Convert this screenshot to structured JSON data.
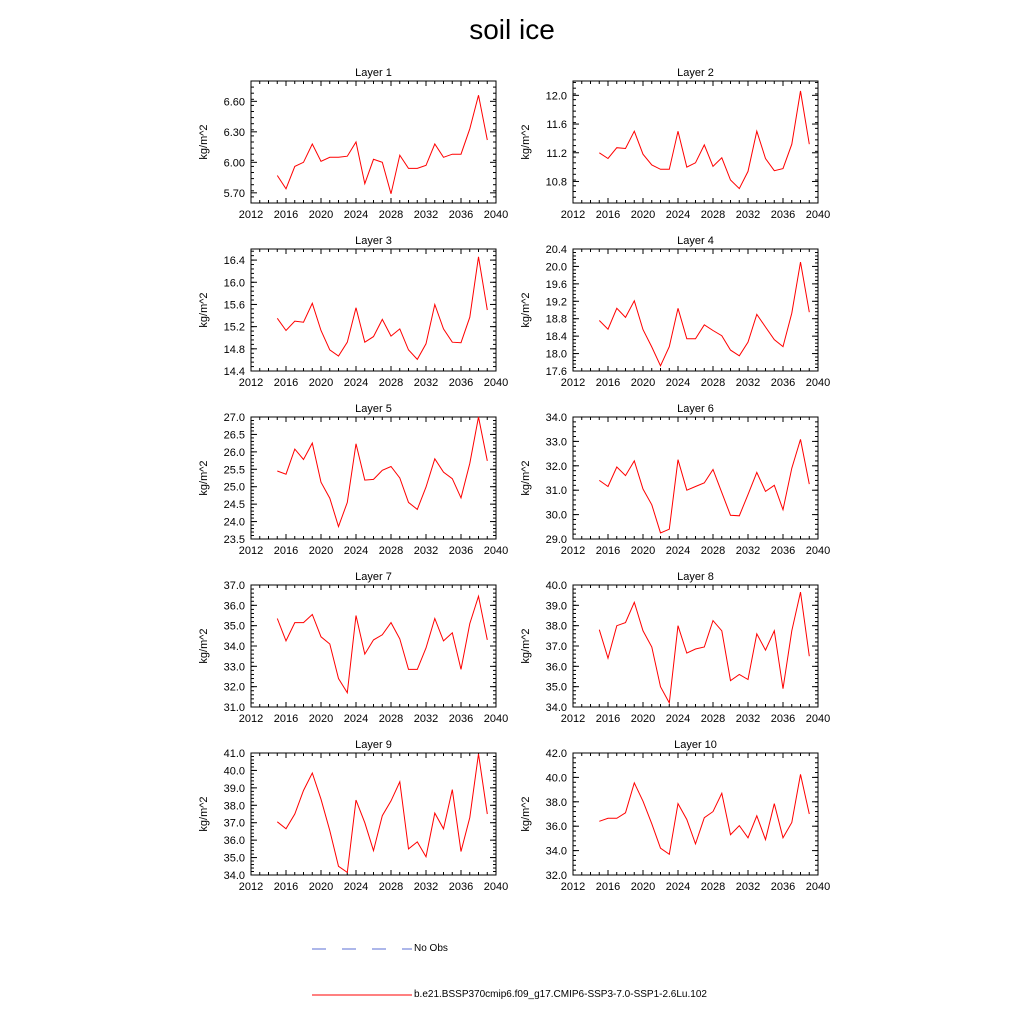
{
  "title": "soil ice",
  "colors": {
    "model": "#ff0000",
    "obs": "#5b6fd6",
    "axis": "#000000"
  },
  "legend": {
    "obs_label": "No Obs",
    "model_label": "b.e21.BSSP370cmip6.f09_g17.CMIP6-SSP3-7.0-SSP1-2.6Lu.102"
  },
  "chart_data": [
    {
      "type": "line",
      "title": "Layer 1",
      "ylabel": "kg/m^2",
      "xlim": [
        2012,
        2040
      ],
      "xticks": [
        2012,
        2016,
        2020,
        2024,
        2028,
        2032,
        2036,
        2040
      ],
      "ylim": [
        5.6,
        6.8
      ],
      "yticks": [
        "5.70",
        "6.00",
        "6.30",
        "6.60"
      ],
      "x": [
        2015,
        2016,
        2017,
        2018,
        2019,
        2020,
        2021,
        2022,
        2023,
        2024,
        2025,
        2026,
        2027,
        2028,
        2029,
        2030,
        2031,
        2032,
        2033,
        2034,
        2035,
        2036,
        2037,
        2038,
        2039
      ],
      "series": [
        {
          "values": [
            5.87,
            5.74,
            5.96,
            6.0,
            6.18,
            6.01,
            6.05,
            6.05,
            6.06,
            6.2,
            5.79,
            6.03,
            6.0,
            5.69,
            6.07,
            5.94,
            5.94,
            5.97,
            6.18,
            6.05,
            6.08,
            6.08,
            6.33,
            6.66,
            6.22
          ]
        }
      ]
    },
    {
      "type": "line",
      "title": "Layer 2",
      "ylabel": "kg/m^2",
      "xlim": [
        2012,
        2040
      ],
      "xticks": [
        2012,
        2016,
        2020,
        2024,
        2028,
        2032,
        2036,
        2040
      ],
      "ylim": [
        10.5,
        12.2
      ],
      "yticks": [
        "10.8",
        "11.2",
        "11.6",
        "12.0"
      ],
      "x": [
        2015,
        2016,
        2017,
        2018,
        2019,
        2020,
        2021,
        2022,
        2023,
        2024,
        2025,
        2026,
        2027,
        2028,
        2029,
        2030,
        2031,
        2032,
        2033,
        2034,
        2035,
        2036,
        2037,
        2038,
        2039
      ],
      "series": [
        {
          "values": [
            11.2,
            11.12,
            11.27,
            11.26,
            11.5,
            11.18,
            11.03,
            10.97,
            10.97,
            11.5,
            11.0,
            11.06,
            11.31,
            11.01,
            11.13,
            10.82,
            10.7,
            10.94,
            11.5,
            11.12,
            10.95,
            10.98,
            11.32,
            12.06,
            11.32
          ]
        }
      ]
    },
    {
      "type": "line",
      "title": "Layer 3",
      "ylabel": "kg/m^2",
      "xlim": [
        2012,
        2040
      ],
      "xticks": [
        2012,
        2016,
        2020,
        2024,
        2028,
        2032,
        2036,
        2040
      ],
      "ylim": [
        14.4,
        16.6
      ],
      "yticks": [
        "14.4",
        "14.8",
        "15.2",
        "15.6",
        "16.0",
        "16.4"
      ],
      "x": [
        2015,
        2016,
        2017,
        2018,
        2019,
        2020,
        2021,
        2022,
        2023,
        2024,
        2025,
        2026,
        2027,
        2028,
        2029,
        2030,
        2031,
        2032,
        2033,
        2034,
        2035,
        2036,
        2037,
        2038,
        2039
      ],
      "series": [
        {
          "values": [
            15.35,
            15.13,
            15.3,
            15.28,
            15.62,
            15.13,
            14.78,
            14.67,
            14.92,
            15.54,
            14.92,
            15.02,
            15.33,
            15.03,
            15.16,
            14.78,
            14.61,
            14.89,
            15.6,
            15.16,
            14.92,
            14.91,
            15.37,
            16.46,
            15.5
          ]
        }
      ]
    },
    {
      "type": "line",
      "title": "Layer 4",
      "ylabel": "kg/m^2",
      "xlim": [
        2012,
        2040
      ],
      "xticks": [
        2012,
        2016,
        2020,
        2024,
        2028,
        2032,
        2036,
        2040
      ],
      "ylim": [
        17.6,
        20.4
      ],
      "yticks": [
        "17.6",
        "18.0",
        "18.4",
        "18.8",
        "19.2",
        "19.6",
        "20.0",
        "20.4"
      ],
      "x": [
        2015,
        2016,
        2017,
        2018,
        2019,
        2020,
        2021,
        2022,
        2023,
        2024,
        2025,
        2026,
        2027,
        2028,
        2029,
        2030,
        2031,
        2032,
        2033,
        2034,
        2035,
        2036,
        2037,
        2038,
        2039
      ],
      "series": [
        {
          "values": [
            18.76,
            18.56,
            19.04,
            18.83,
            19.21,
            18.55,
            18.15,
            17.72,
            18.16,
            19.04,
            18.34,
            18.34,
            18.66,
            18.53,
            18.41,
            18.08,
            17.95,
            18.26,
            18.9,
            18.61,
            18.32,
            18.16,
            18.93,
            20.1,
            18.95
          ]
        }
      ]
    },
    {
      "type": "line",
      "title": "Layer 5",
      "ylabel": "kg/m^2",
      "xlim": [
        2012,
        2040
      ],
      "xticks": [
        2012,
        2016,
        2020,
        2024,
        2028,
        2032,
        2036,
        2040
      ],
      "ylim": [
        23.5,
        27.0
      ],
      "yticks": [
        "23.5",
        "24.0",
        "24.5",
        "25.0",
        "25.5",
        "26.0",
        "26.5",
        "27.0"
      ],
      "x": [
        2015,
        2016,
        2017,
        2018,
        2019,
        2020,
        2021,
        2022,
        2023,
        2024,
        2025,
        2026,
        2027,
        2028,
        2029,
        2030,
        2031,
        2032,
        2033,
        2034,
        2035,
        2036,
        2037,
        2038,
        2039
      ],
      "series": [
        {
          "values": [
            25.45,
            25.36,
            26.08,
            25.78,
            26.25,
            25.13,
            24.67,
            23.86,
            24.55,
            26.23,
            25.19,
            25.21,
            25.47,
            25.58,
            25.25,
            24.55,
            24.35,
            24.99,
            25.8,
            25.42,
            25.23,
            24.68,
            25.67,
            27.0,
            25.74
          ]
        }
      ]
    },
    {
      "type": "line",
      "title": "Layer 6",
      "ylabel": "kg/m^2",
      "xlim": [
        2012,
        2040
      ],
      "xticks": [
        2012,
        2016,
        2020,
        2024,
        2028,
        2032,
        2036,
        2040
      ],
      "ylim": [
        29.0,
        34.0
      ],
      "yticks": [
        "29.0",
        "30.0",
        "31.0",
        "32.0",
        "33.0",
        "34.0"
      ],
      "x": [
        2015,
        2016,
        2017,
        2018,
        2019,
        2020,
        2021,
        2022,
        2023,
        2024,
        2025,
        2026,
        2027,
        2028,
        2029,
        2030,
        2031,
        2032,
        2033,
        2034,
        2035,
        2036,
        2037,
        2038,
        2039
      ],
      "series": [
        {
          "values": [
            31.4,
            31.15,
            31.95,
            31.6,
            32.2,
            31.05,
            30.4,
            29.25,
            29.4,
            32.25,
            31.0,
            31.15,
            31.3,
            31.85,
            30.9,
            29.97,
            29.95,
            30.82,
            31.73,
            30.95,
            31.2,
            30.2,
            31.9,
            33.08,
            31.25
          ]
        }
      ]
    },
    {
      "type": "line",
      "title": "Layer 7",
      "ylabel": "kg/m^2",
      "xlim": [
        2012,
        2040
      ],
      "xticks": [
        2012,
        2016,
        2020,
        2024,
        2028,
        2032,
        2036,
        2040
      ],
      "ylim": [
        31.0,
        37.0
      ],
      "yticks": [
        "31.0",
        "32.0",
        "33.0",
        "34.0",
        "35.0",
        "36.0",
        "37.0"
      ],
      "x": [
        2015,
        2016,
        2017,
        2018,
        2019,
        2020,
        2021,
        2022,
        2023,
        2024,
        2025,
        2026,
        2027,
        2028,
        2029,
        2030,
        2031,
        2032,
        2033,
        2034,
        2035,
        2036,
        2037,
        2038,
        2039
      ],
      "series": [
        {
          "values": [
            35.35,
            34.25,
            35.15,
            35.15,
            35.55,
            34.45,
            34.1,
            32.4,
            31.7,
            35.5,
            33.6,
            34.3,
            34.55,
            35.15,
            34.35,
            32.85,
            32.85,
            33.9,
            35.35,
            34.25,
            34.65,
            32.85,
            35.1,
            36.45,
            34.3
          ]
        }
      ]
    },
    {
      "type": "line",
      "title": "Layer 8",
      "ylabel": "kg/m^2",
      "xlim": [
        2012,
        2040
      ],
      "xticks": [
        2012,
        2016,
        2020,
        2024,
        2028,
        2032,
        2036,
        2040
      ],
      "ylim": [
        34.0,
        40.0
      ],
      "yticks": [
        "34.0",
        "35.0",
        "36.0",
        "37.0",
        "38.0",
        "39.0",
        "40.0"
      ],
      "x": [
        2015,
        2016,
        2017,
        2018,
        2019,
        2020,
        2021,
        2022,
        2023,
        2024,
        2025,
        2026,
        2027,
        2028,
        2029,
        2030,
        2031,
        2032,
        2033,
        2034,
        2035,
        2036,
        2037,
        2038,
        2039
      ],
      "series": [
        {
          "values": [
            37.8,
            36.4,
            38.0,
            38.15,
            39.15,
            37.75,
            36.95,
            35.0,
            34.2,
            38.0,
            36.65,
            36.85,
            36.95,
            38.25,
            37.75,
            35.3,
            35.6,
            35.35,
            37.6,
            36.8,
            37.75,
            34.9,
            37.75,
            39.65,
            36.5
          ]
        }
      ]
    },
    {
      "type": "line",
      "title": "Layer 9",
      "ylabel": "kg/m^2",
      "xlim": [
        2012,
        2040
      ],
      "xticks": [
        2012,
        2016,
        2020,
        2024,
        2028,
        2032,
        2036,
        2040
      ],
      "ylim": [
        34.0,
        41.0
      ],
      "yticks": [
        "34.0",
        "35.0",
        "36.0",
        "37.0",
        "38.0",
        "39.0",
        "40.0",
        "41.0"
      ],
      "x": [
        2015,
        2016,
        2017,
        2018,
        2019,
        2020,
        2021,
        2022,
        2023,
        2024,
        2025,
        2026,
        2027,
        2028,
        2029,
        2030,
        2031,
        2032,
        2033,
        2034,
        2035,
        2036,
        2037,
        2038,
        2039
      ],
      "series": [
        {
          "values": [
            37.05,
            36.65,
            37.5,
            38.85,
            39.85,
            38.35,
            36.55,
            34.5,
            34.15,
            38.3,
            37.0,
            35.4,
            37.4,
            38.25,
            39.35,
            35.5,
            35.9,
            35.05,
            37.55,
            36.65,
            38.9,
            35.35,
            37.3,
            40.95,
            37.5
          ]
        }
      ]
    },
    {
      "type": "line",
      "title": "Layer 10",
      "ylabel": "kg/m^2",
      "xlim": [
        2012,
        2040
      ],
      "xticks": [
        2012,
        2016,
        2020,
        2024,
        2028,
        2032,
        2036,
        2040
      ],
      "ylim": [
        32.0,
        42.0
      ],
      "yticks": [
        "32.0",
        "34.0",
        "36.0",
        "38.0",
        "40.0",
        "42.0"
      ],
      "x": [
        2015,
        2016,
        2017,
        2018,
        2019,
        2020,
        2021,
        2022,
        2023,
        2024,
        2025,
        2026,
        2027,
        2028,
        2029,
        2030,
        2031,
        2032,
        2033,
        2034,
        2035,
        2036,
        2037,
        2038,
        2039
      ],
      "series": [
        {
          "values": [
            36.4,
            36.65,
            36.65,
            37.1,
            39.55,
            38.05,
            36.2,
            34.2,
            33.7,
            37.85,
            36.55,
            34.55,
            36.7,
            37.2,
            38.7,
            35.3,
            36.05,
            35.05,
            36.85,
            34.9,
            37.85,
            35.05,
            36.3,
            40.25,
            37.0
          ]
        }
      ]
    }
  ]
}
